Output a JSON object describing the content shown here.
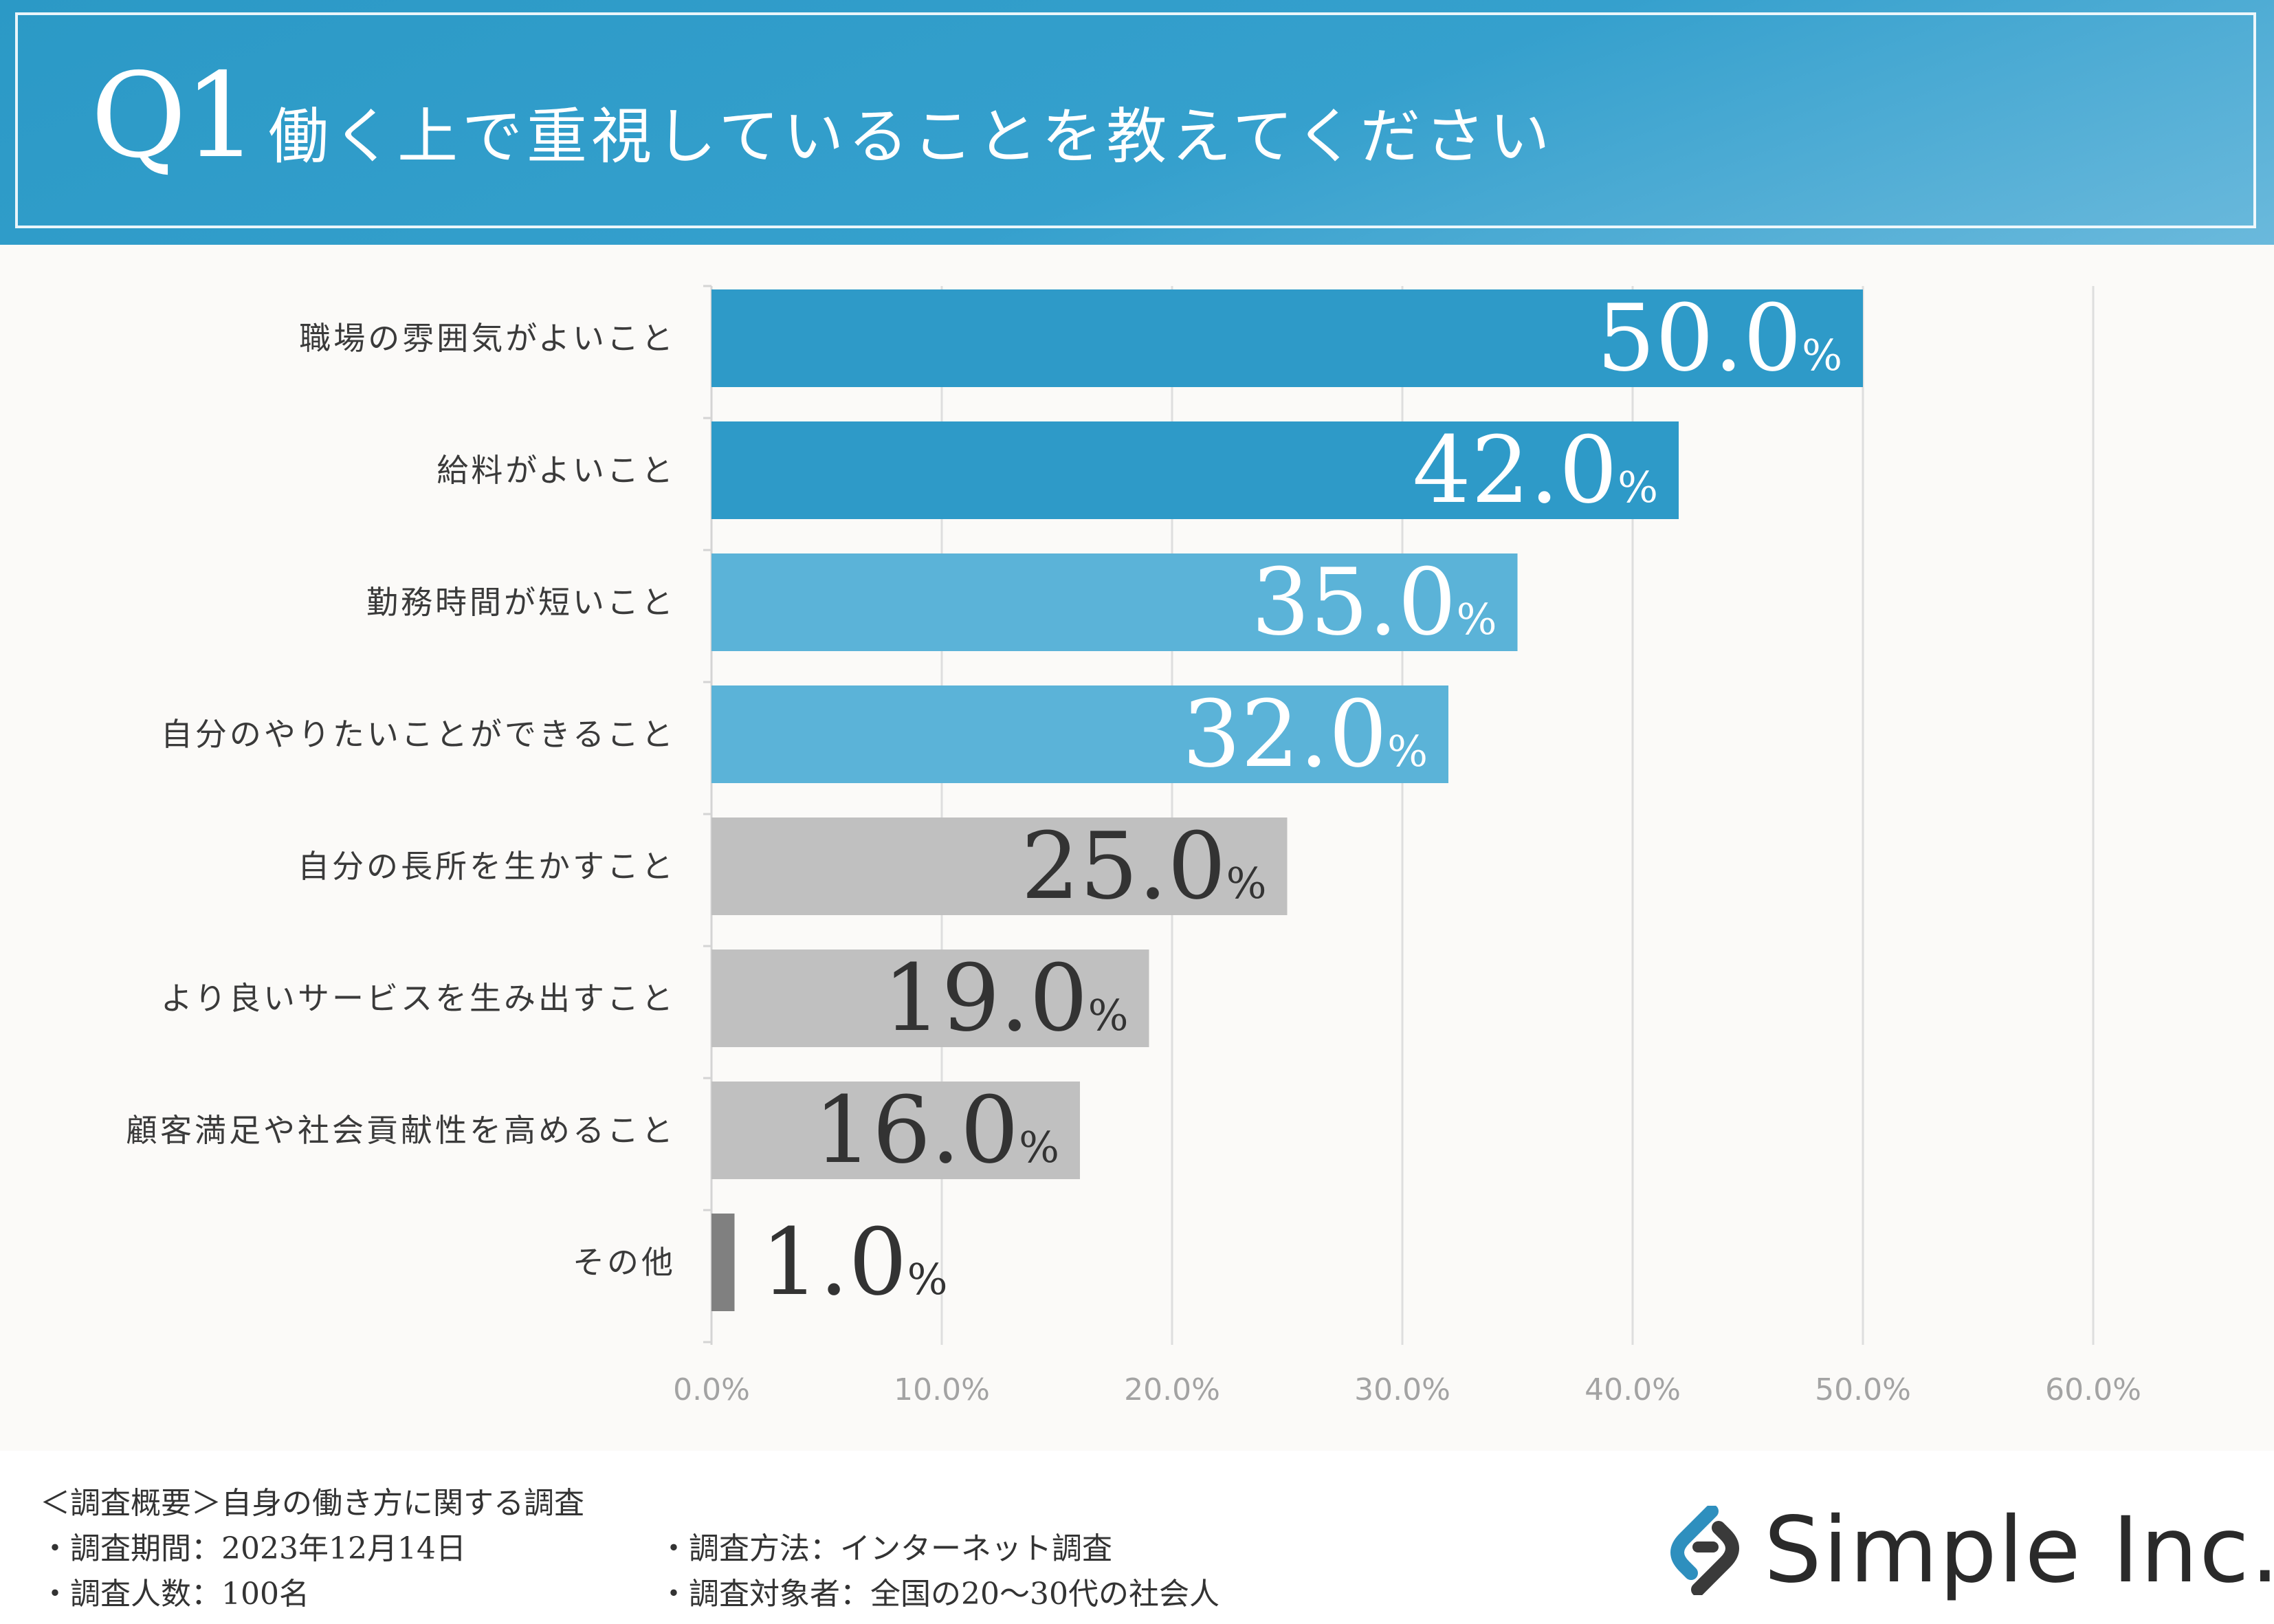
{
  "header": {
    "q_label": "Q1",
    "question": "働く上で重視していることを教えてください"
  },
  "chart_data": {
    "type": "bar",
    "orientation": "horizontal",
    "title": "働く上で重視していることを教えてください",
    "categories": [
      "職場の雰囲気がよいこと",
      "給料がよいこと",
      "勤務時間が短いこと",
      "自分のやりたいことができること",
      "自分の長所を生かすこと",
      "より良いサービスを生み出すこと",
      "顧客満足や社会貢献性を高めること",
      "その他"
    ],
    "values": [
      50.0,
      42.0,
      35.0,
      32.0,
      25.0,
      19.0,
      16.0,
      1.0
    ],
    "value_labels": [
      "50.0",
      "42.0",
      "35.0",
      "32.0",
      "25.0",
      "19.0",
      "16.0",
      "1.0"
    ],
    "percent_sign": "%",
    "bar_colors": [
      "#2e9ac8",
      "#2e9ac8",
      "#5bb3d8",
      "#5bb3d8",
      "#c0c0c0",
      "#c0c0c0",
      "#c0c0c0",
      "#808080"
    ],
    "label_colors": [
      "#ffffff",
      "#ffffff",
      "#ffffff",
      "#ffffff",
      "#333333",
      "#333333",
      "#333333",
      "#333333"
    ],
    "xlim": [
      0,
      60
    ],
    "xticks": [
      "0.0%",
      "10.0%",
      "20.0%",
      "30.0%",
      "40.0%",
      "50.0%",
      "60.0%"
    ],
    "grid": true,
    "xlabel": "",
    "ylabel": ""
  },
  "footer": {
    "overview": "＜調査概要＞自身の働き方に関する調査",
    "period": "・調査期間：2023年12月14日",
    "count": "・調査人数：100名",
    "method": "・調査方法：インターネット調査",
    "target": "・調査対象者：全国の20〜30代の社会人"
  },
  "logo": {
    "name": "Simple Inc.",
    "colors": {
      "blue": "#2e8fbe",
      "dark": "#3a3a3a"
    }
  }
}
